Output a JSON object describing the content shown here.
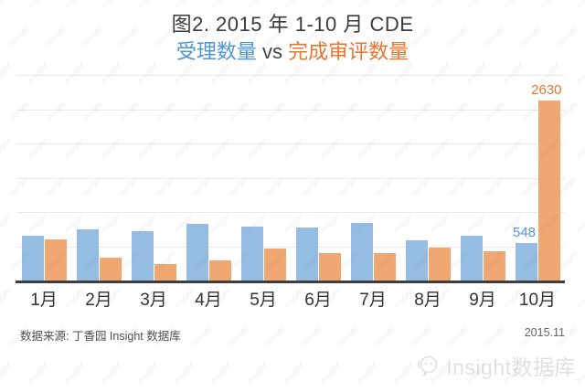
{
  "title": {
    "line1": "图2. 2015 年 1-10 月 CDE",
    "line2_blue": "受理数量",
    "line2_mid": " vs ",
    "line2_orange": "完成审评数量"
  },
  "chart_data": {
    "type": "bar",
    "title": "图2. 2015 年 1-10 月 CDE 受理数量 vs 完成审评数量",
    "xlabel": "",
    "ylabel": "",
    "categories": [
      "1月",
      "2月",
      "3月",
      "4月",
      "5月",
      "6月",
      "7月",
      "8月",
      "9月",
      "10月"
    ],
    "series": [
      {
        "name": "受理数量",
        "color": "#95bce3",
        "values": [
          660,
          750,
          715,
          825,
          785,
          775,
          845,
          585,
          650,
          548
        ]
      },
      {
        "name": "完成审评数量",
        "color": "#f0a771",
        "values": [
          605,
          340,
          240,
          300,
          470,
          395,
          405,
          480,
          430,
          2630
        ]
      }
    ],
    "ylim": [
      0,
      3000
    ],
    "gridline_step": 500,
    "grid": true,
    "legend_position": "none (series named by colored subtitle)",
    "annotations": [
      {
        "series_index": 0,
        "category_index": 9,
        "text": "548",
        "color": "#4e95d3"
      },
      {
        "series_index": 1,
        "category_index": 9,
        "text": "2630",
        "color": "#e6762f"
      }
    ]
  },
  "footer": {
    "source": "数据来源: 丁香园 Insight 数据库",
    "date": "2015.11"
  },
  "watermark": {
    "tile_text": "Insight",
    "logo_text": "Insight数据库"
  },
  "colors": {
    "series_blue": "#95bce3",
    "series_orange": "#f0a771",
    "text_blue": "#4e95d3",
    "text_orange": "#e6762f",
    "axis_line": "#3f3f3f",
    "gridline": "#ebebeb"
  }
}
